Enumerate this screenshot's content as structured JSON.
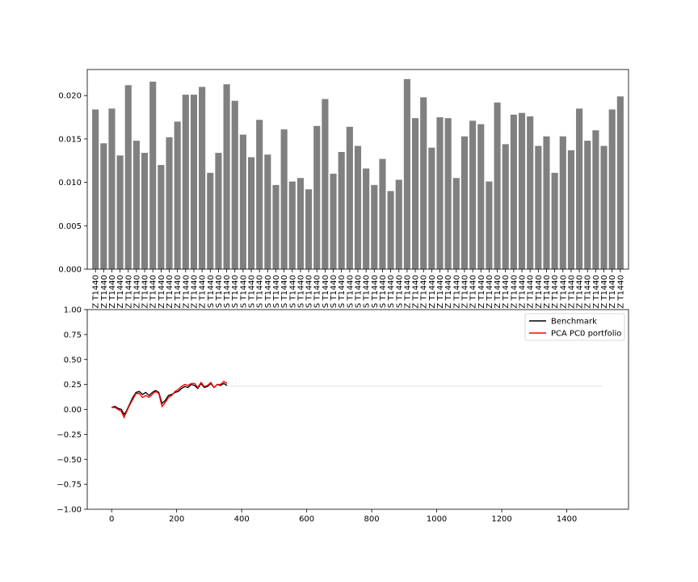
{
  "chart_data": [
    {
      "type": "bar",
      "bar_color": "#808080",
      "categories": [
        "Z T1440",
        "Z T1440",
        "Z T1440",
        "Z T1440",
        "Z T1440",
        "Z T1440",
        "Z T1440",
        "Z T1440",
        "Z T1440",
        "Z T1440",
        "Z T1440",
        "Z T1440",
        "Z T1440",
        "Z T1440",
        "S T1440",
        "S T1440",
        "S T1440",
        "S T1440",
        "S T1440",
        "S T1440",
        "S T1440",
        "S T1440",
        "S T1440",
        "S T1440",
        "S T1440",
        "S T1440",
        "S T1440",
        "S T1440",
        "S T1440",
        "S T1440",
        "S T1440",
        "S T1440",
        "S T1440",
        "S T1440",
        "S T1440",
        "S T1440",
        "S T1440",
        "S T1440",
        "Z T1440",
        "Z T1440",
        "Z T1440",
        "Z T1440",
        "Z T1440",
        "Z T1440",
        "Z T1440",
        "Z T1440",
        "Z T1440",
        "Z T1440",
        "Z T1440",
        "Z T1440",
        "Z T1440",
        "Z T1440",
        "Z T1440",
        "Z T1440",
        "Z T1440",
        "Z T1440",
        "Z T1440",
        "Z T1440",
        "Z T1440",
        "Z T1440",
        "Z T1440",
        "Z T1440",
        "Z T1440",
        "Z T1440",
        "Z T1440"
      ],
      "values": [
        0.0184,
        0.0145,
        0.0185,
        0.0131,
        0.0212,
        0.0148,
        0.0134,
        0.0216,
        0.012,
        0.0152,
        0.017,
        0.0201,
        0.0201,
        0.021,
        0.0111,
        0.0134,
        0.0213,
        0.0194,
        0.0155,
        0.0129,
        0.0172,
        0.0132,
        0.0097,
        0.0161,
        0.0101,
        0.0105,
        0.0092,
        0.0165,
        0.0196,
        0.011,
        0.0135,
        0.0164,
        0.0142,
        0.0116,
        0.0097,
        0.0127,
        0.009,
        0.0103,
        0.0219,
        0.0174,
        0.0198,
        0.014,
        0.0175,
        0.0174,
        0.0105,
        0.0153,
        0.0171,
        0.0167,
        0.0101,
        0.0192,
        0.0144,
        0.0178,
        0.018,
        0.0176,
        0.0142,
        0.0153,
        0.0111,
        0.0153,
        0.0137,
        0.0185,
        0.0148,
        0.016,
        0.0142,
        0.0184,
        0.0199
      ],
      "ylim": [
        0,
        0.023
      ],
      "yticks": [
        "0.000",
        "0.005",
        "0.010",
        "0.015",
        "0.020"
      ],
      "ytick_values": [
        0,
        0.005,
        0.01,
        0.015,
        0.02
      ]
    },
    {
      "type": "line",
      "xlim": [
        -75,
        1590
      ],
      "ylim": [
        -1.0,
        1.0
      ],
      "xticks": [
        "0",
        "200",
        "400",
        "600",
        "800",
        "1000",
        "1200",
        "1400"
      ],
      "xtick_values": [
        0,
        200,
        400,
        600,
        800,
        1000,
        1200,
        1400
      ],
      "yticks": [
        "1.00",
        "0.75",
        "0.50",
        "0.25",
        "0.00",
        "−0.25",
        "−0.50",
        "−0.75",
        "−1.00"
      ],
      "ytick_values": [
        1.0,
        0.75,
        0.5,
        0.25,
        0.0,
        -0.25,
        -0.5,
        -0.75,
        -1.0
      ],
      "legend_position": "upper right",
      "reference_line": {
        "color": "#d9d9d9",
        "y": 0.235,
        "x": [
          355,
          1510
        ]
      },
      "series": [
        {
          "name": "Benchmark",
          "color": "#000000",
          "points": [
            [
              0,
              0.02
            ],
            [
              10,
              0.03
            ],
            [
              20,
              0.01
            ],
            [
              30,
              0.0
            ],
            [
              38,
              -0.05
            ],
            [
              45,
              -0.02
            ],
            [
              55,
              0.05
            ],
            [
              65,
              0.12
            ],
            [
              75,
              0.17
            ],
            [
              85,
              0.18
            ],
            [
              95,
              0.15
            ],
            [
              105,
              0.17
            ],
            [
              115,
              0.14
            ],
            [
              125,
              0.17
            ],
            [
              135,
              0.19
            ],
            [
              145,
              0.17
            ],
            [
              155,
              0.06
            ],
            [
              165,
              0.09
            ],
            [
              175,
              0.14
            ],
            [
              185,
              0.15
            ],
            [
              195,
              0.17
            ],
            [
              205,
              0.18
            ],
            [
              215,
              0.21
            ],
            [
              225,
              0.23
            ],
            [
              235,
              0.22
            ],
            [
              245,
              0.25
            ],
            [
              255,
              0.24
            ],
            [
              265,
              0.21
            ],
            [
              275,
              0.26
            ],
            [
              285,
              0.22
            ],
            [
              295,
              0.23
            ],
            [
              305,
              0.26
            ],
            [
              315,
              0.22
            ],
            [
              325,
              0.25
            ],
            [
              335,
              0.24
            ],
            [
              345,
              0.26
            ],
            [
              355,
              0.24
            ]
          ]
        },
        {
          "name": "PCA PC0 portfolio",
          "color": "#ff0000",
          "points": [
            [
              0,
              0.02
            ],
            [
              10,
              0.02
            ],
            [
              20,
              0.0
            ],
            [
              30,
              -0.02
            ],
            [
              38,
              -0.08
            ],
            [
              45,
              -0.03
            ],
            [
              55,
              0.04
            ],
            [
              65,
              0.1
            ],
            [
              75,
              0.16
            ],
            [
              85,
              0.16
            ],
            [
              95,
              0.12
            ],
            [
              105,
              0.14
            ],
            [
              115,
              0.12
            ],
            [
              125,
              0.15
            ],
            [
              135,
              0.18
            ],
            [
              145,
              0.16
            ],
            [
              155,
              0.03
            ],
            [
              165,
              0.07
            ],
            [
              175,
              0.12
            ],
            [
              185,
              0.14
            ],
            [
              195,
              0.18
            ],
            [
              205,
              0.2
            ],
            [
              215,
              0.23
            ],
            [
              225,
              0.25
            ],
            [
              235,
              0.24
            ],
            [
              245,
              0.26
            ],
            [
              255,
              0.26
            ],
            [
              265,
              0.22
            ],
            [
              275,
              0.27
            ],
            [
              285,
              0.23
            ],
            [
              295,
              0.24
            ],
            [
              305,
              0.27
            ],
            [
              315,
              0.22
            ],
            [
              325,
              0.25
            ],
            [
              335,
              0.25
            ],
            [
              345,
              0.28
            ],
            [
              355,
              0.26
            ]
          ]
        }
      ]
    }
  ]
}
